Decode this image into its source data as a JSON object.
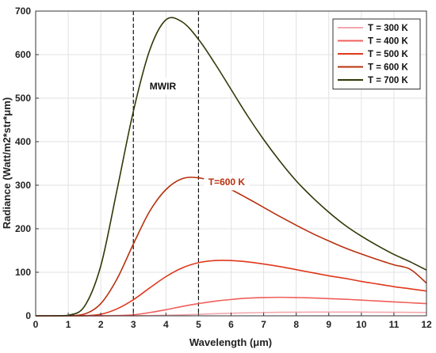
{
  "chart_data": {
    "type": "line",
    "xlabel": "Wavelength (μm)",
    "ylabel": "Radiance (Watt/m2*str*μm)",
    "xlim": [
      0,
      12
    ],
    "ylim": [
      0,
      700
    ],
    "xticks": [
      0,
      1,
      2,
      3,
      4,
      5,
      6,
      7,
      8,
      9,
      10,
      11,
      12
    ],
    "yticks": [
      0,
      100,
      200,
      300,
      400,
      500,
      600,
      700
    ],
    "grid": true,
    "legend_position": "top-right",
    "x": [
      0,
      0.5,
      1,
      1.5,
      2,
      2.5,
      3,
      3.5,
      4,
      4.5,
      5,
      5.5,
      6,
      6.5,
      7,
      7.5,
      8,
      8.5,
      9,
      9.5,
      10,
      10.5,
      11,
      11.5,
      12
    ],
    "series": [
      {
        "name": "T = 300 K",
        "color": "#f4a7ad",
        "values": [
          0,
          0,
          0,
          0,
          0,
          0,
          0.1,
          0.5,
          1.2,
          2.2,
          3.5,
          4.8,
          5.9,
          6.8,
          7.5,
          8.0,
          8.3,
          8.5,
          8.6,
          8.6,
          8.5,
          8.3,
          8.1,
          7.9,
          7.6
        ]
      },
      {
        "name": "T = 400 K",
        "color": "#ef5f5b",
        "values": [
          0,
          0,
          0,
          0,
          0.1,
          0.7,
          2.3,
          7.5,
          14,
          21.5,
          28,
          33.5,
          37.5,
          40.5,
          42,
          42.5,
          42,
          41,
          39.5,
          38,
          36,
          34,
          32,
          30,
          28
        ]
      },
      {
        "name": "T = 500 K",
        "color": "#e0381c",
        "values": [
          0,
          0,
          0,
          0.3,
          3.5,
          16,
          37,
          64,
          90,
          110,
          122,
          127,
          127,
          124,
          119,
          113,
          106,
          99,
          92,
          86,
          79,
          73,
          67,
          62,
          57
        ]
      },
      {
        "name": "T = 600 K",
        "color": "#b8300e",
        "values": [
          0,
          0,
          0,
          4,
          28,
          85,
          165,
          240,
          290,
          315,
          317,
          307,
          290,
          270,
          249,
          228,
          208,
          189,
          172,
          156,
          142,
          129,
          117,
          107,
          75
        ]
      },
      {
        "name": "T = 700 K",
        "color": "#2e3a06",
        "values": [
          0,
          0,
          1,
          22,
          115,
          290,
          470,
          610,
          680,
          675,
          635,
          580,
          520,
          460,
          405,
          355,
          310,
          272,
          238,
          208,
          183,
          161,
          141,
          124,
          105
        ]
      }
    ],
    "vlines": [
      3,
      5
    ],
    "annotations": [
      {
        "text": "MWIR",
        "x": 3.5,
        "y": 520,
        "color": "#111111"
      },
      {
        "text": "T=600 K",
        "x": 5.3,
        "y": 300,
        "color": "#b8300e"
      }
    ]
  }
}
